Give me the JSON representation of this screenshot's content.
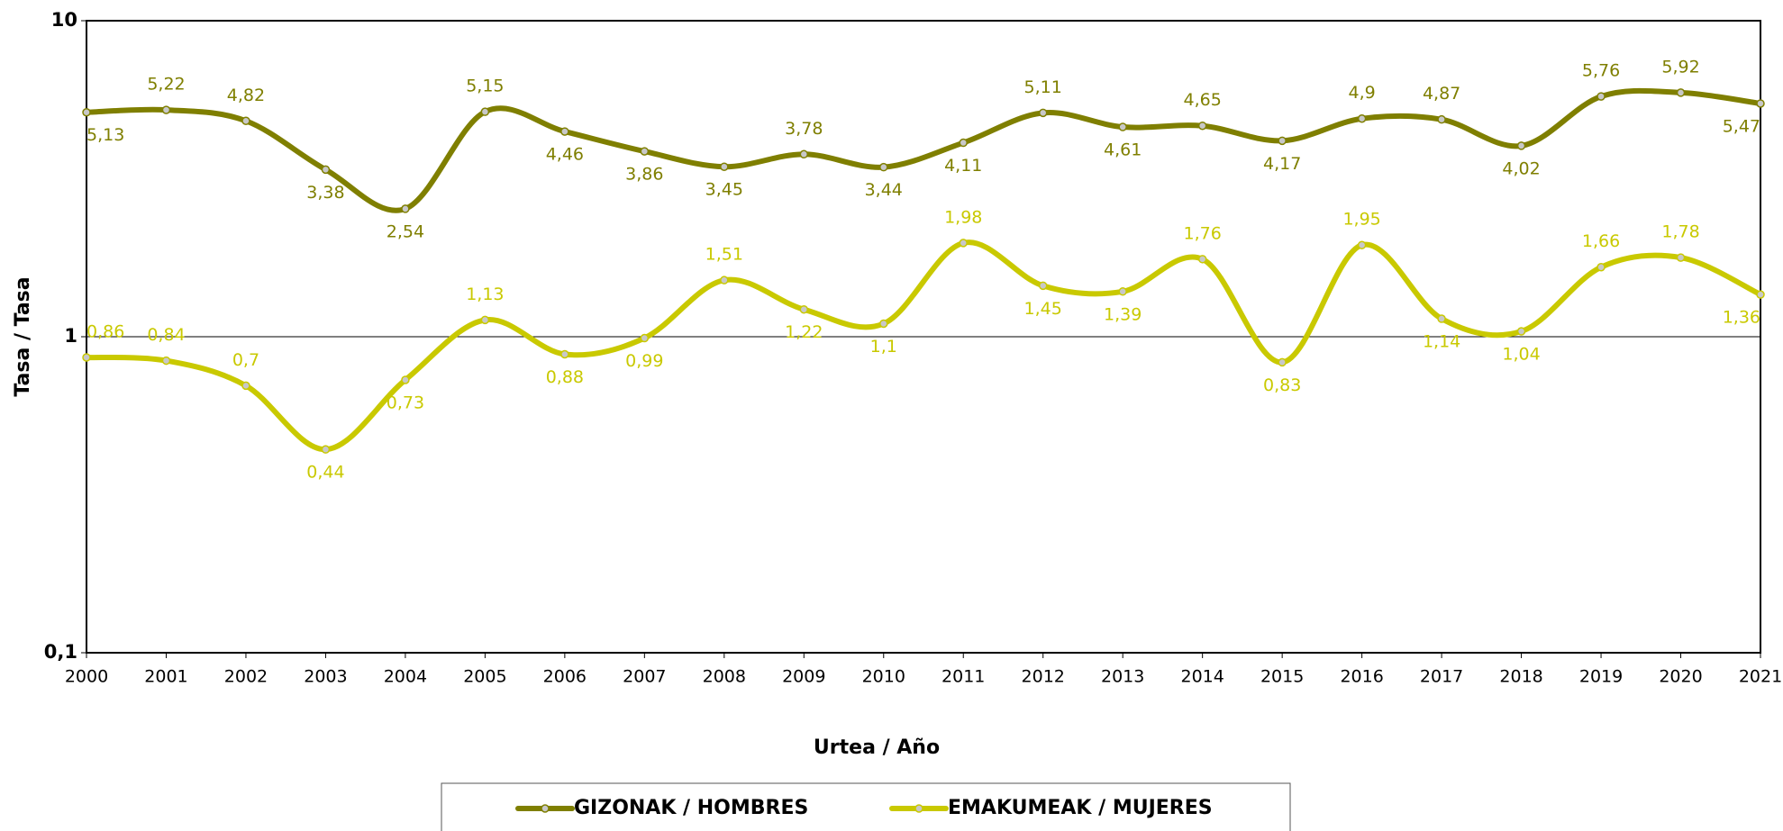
{
  "chart_data": {
    "type": "line",
    "x_label": "Urtea / Año",
    "y_label": "Tasa / Tasa",
    "categories": [
      "2000",
      "2001",
      "2002",
      "2003",
      "2004",
      "2005",
      "2006",
      "2007",
      "2008",
      "2009",
      "2010",
      "2011",
      "2012",
      "2013",
      "2014",
      "2015",
      "2016",
      "2017",
      "2018",
      "2019",
      "2020",
      "2021"
    ],
    "log_scale": true,
    "ylim": [
      0.1,
      10
    ],
    "yticks": [
      {
        "value": 0.1,
        "label": "0,1"
      },
      1,
      10
    ],
    "grid": true,
    "legend": "bottom",
    "series": [
      {
        "name": "GIZONAK / HOMBRES",
        "color": "#7f7f00",
        "values": [
          5.13,
          5.22,
          4.82,
          3.38,
          2.54,
          5.15,
          4.46,
          3.86,
          3.45,
          3.78,
          3.44,
          4.11,
          5.11,
          4.61,
          4.65,
          4.17,
          4.9,
          4.87,
          4.02,
          5.76,
          5.92,
          5.47
        ],
        "value_labels": [
          "5,13",
          "5,22",
          "4,82",
          "3,38",
          "2,54",
          "5,15",
          "4,46",
          "3,86",
          "3,45",
          "3,78",
          "3,44",
          "4,11",
          "5,11",
          "4,61",
          "4,65",
          "4,17",
          "4,9",
          "4,87",
          "4,02",
          "5,76",
          "5,92",
          "5,47"
        ]
      },
      {
        "name": "EMAKUMEAK / MUJERES",
        "color": "#c9c900",
        "values": [
          0.86,
          0.84,
          0.7,
          0.44,
          0.73,
          1.13,
          0.88,
          0.99,
          1.51,
          1.22,
          1.1,
          1.98,
          1.45,
          1.39,
          1.76,
          0.83,
          1.95,
          1.14,
          1.04,
          1.66,
          1.78,
          1.36
        ],
        "value_labels": [
          "0,86",
          "0,84",
          "0,7",
          "0,44",
          "0,73",
          "1,13",
          "0,88",
          "0,99",
          "1,51",
          "1,22",
          "1,1",
          "1,98",
          "1,45",
          "1,39",
          "1,76",
          "0,83",
          "1,95",
          "1,14",
          "1,04",
          "1,66",
          "1,78",
          "1,36"
        ]
      }
    ]
  }
}
